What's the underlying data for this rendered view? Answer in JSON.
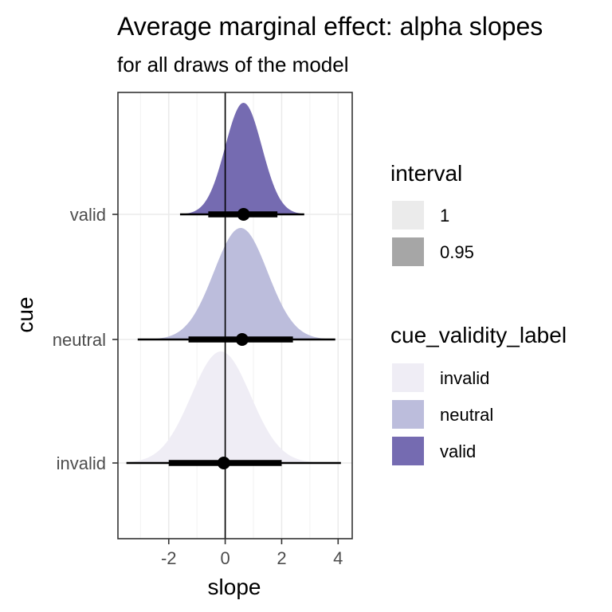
{
  "chart_data": {
    "type": "halfeye",
    "title": "Average marginal effect: alpha slopes",
    "subtitle": "for all draws of the model",
    "xlabel": "slope",
    "ylabel": "cue",
    "xlim": [
      -3.8,
      4.5
    ],
    "x_ticks": [
      -2,
      0,
      2,
      4
    ],
    "x_minor_ticks": [
      -3,
      -1,
      1,
      3
    ],
    "y_categories": [
      "valid",
      "neutral",
      "invalid"
    ],
    "reference_line_x": 0,
    "grid": true,
    "legend_position": "right",
    "series": [
      {
        "category": "valid",
        "center": 0.65,
        "sd": 0.65,
        "point": 0.65,
        "interval_95": [
          -0.6,
          1.85
        ],
        "interval_full": [
          -1.6,
          2.8
        ]
      },
      {
        "category": "neutral",
        "center": 0.55,
        "sd": 0.95,
        "point": 0.6,
        "interval_95": [
          -1.3,
          2.4
        ],
        "interval_full": [
          -3.1,
          3.9
        ]
      },
      {
        "category": "invalid",
        "center": -0.15,
        "sd": 1.05,
        "point": -0.05,
        "interval_95": [
          -2.0,
          2.0
        ],
        "interval_full": [
          -3.5,
          4.1
        ]
      }
    ],
    "legends": {
      "interval": {
        "title": "interval",
        "items": [
          {
            "label": "1",
            "color": "#ebebeb"
          },
          {
            "label": "0.95",
            "color": "#a6a6a6"
          }
        ]
      },
      "cue_validity": {
        "title": "cue_validity_label",
        "items": [
          {
            "label": "invalid",
            "color": "#efedf5"
          },
          {
            "label": "neutral",
            "color": "#bcbddc"
          },
          {
            "label": "valid",
            "color": "#756bb1"
          }
        ]
      }
    }
  }
}
